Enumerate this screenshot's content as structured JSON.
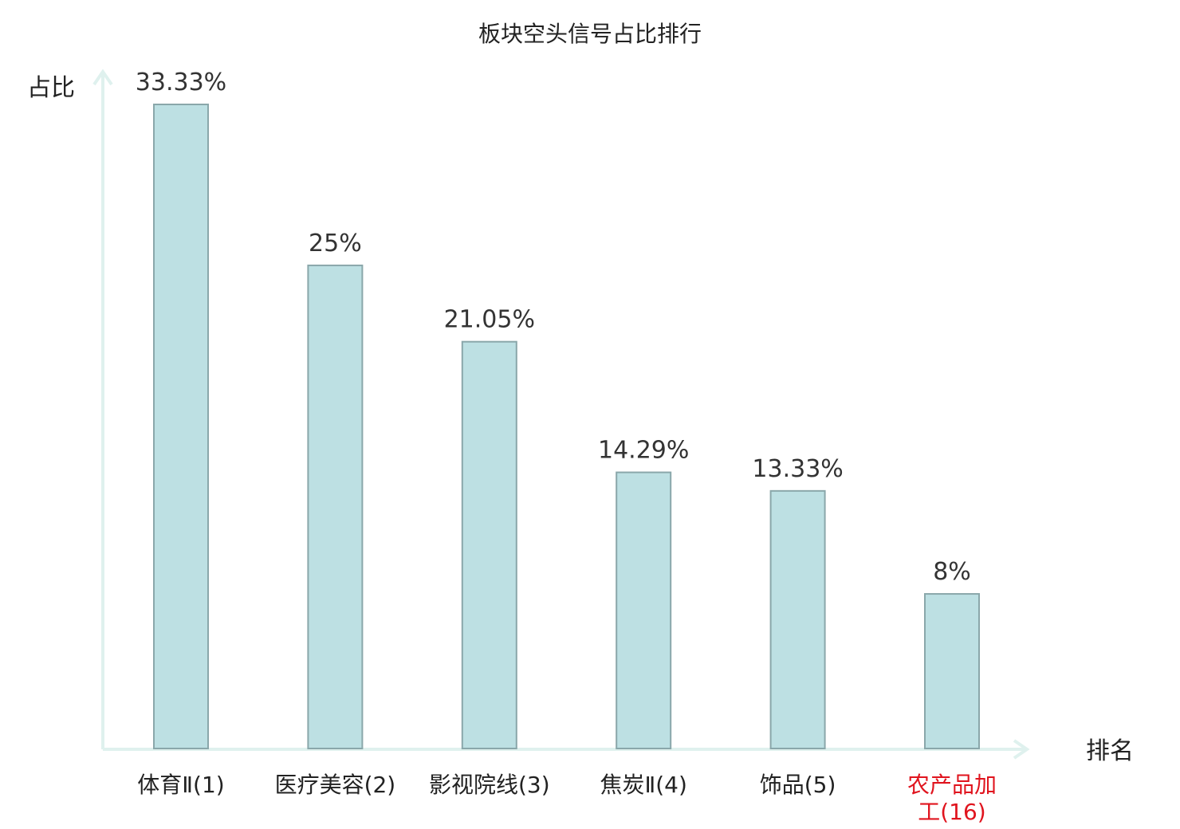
{
  "chart_data": {
    "type": "bar",
    "title": "板块空头信号占比排行",
    "ylabel": "占比",
    "xlabel": "排名",
    "categories": [
      {
        "name": "体育Ⅱ",
        "rank": "(1)",
        "lines": [
          "体育Ⅱ(1)"
        ],
        "highlight": false
      },
      {
        "name": "医疗美容",
        "rank": "(2)",
        "lines": [
          "医疗美容(2)"
        ],
        "highlight": false
      },
      {
        "name": "影视院线",
        "rank": "(3)",
        "lines": [
          "影视院线(3)"
        ],
        "highlight": false
      },
      {
        "name": "焦炭Ⅱ",
        "rank": "(4)",
        "lines": [
          "焦炭Ⅱ(4)"
        ],
        "highlight": false
      },
      {
        "name": "饰品",
        "rank": "(5)",
        "lines": [
          "饰品(5)"
        ],
        "highlight": false
      },
      {
        "name": "农产品加工",
        "rank": "(16)",
        "lines": [
          "农产品加",
          "工(16)"
        ],
        "highlight": true
      }
    ],
    "values": [
      33.33,
      25,
      21.05,
      14.29,
      13.33,
      8
    ],
    "value_labels": [
      "33.33%",
      "25%",
      "21.05%",
      "14.29%",
      "13.33%",
      "8%"
    ],
    "ylim": [
      0,
      34.5
    ],
    "grid": false,
    "colors": {
      "bar_fill": "#bde0e3",
      "bar_stroke": "#8aa7aa",
      "axis": "#dff1ee",
      "highlight_label": "#e0141e",
      "normal_label": "#222222",
      "rank_label": "#555555"
    }
  }
}
